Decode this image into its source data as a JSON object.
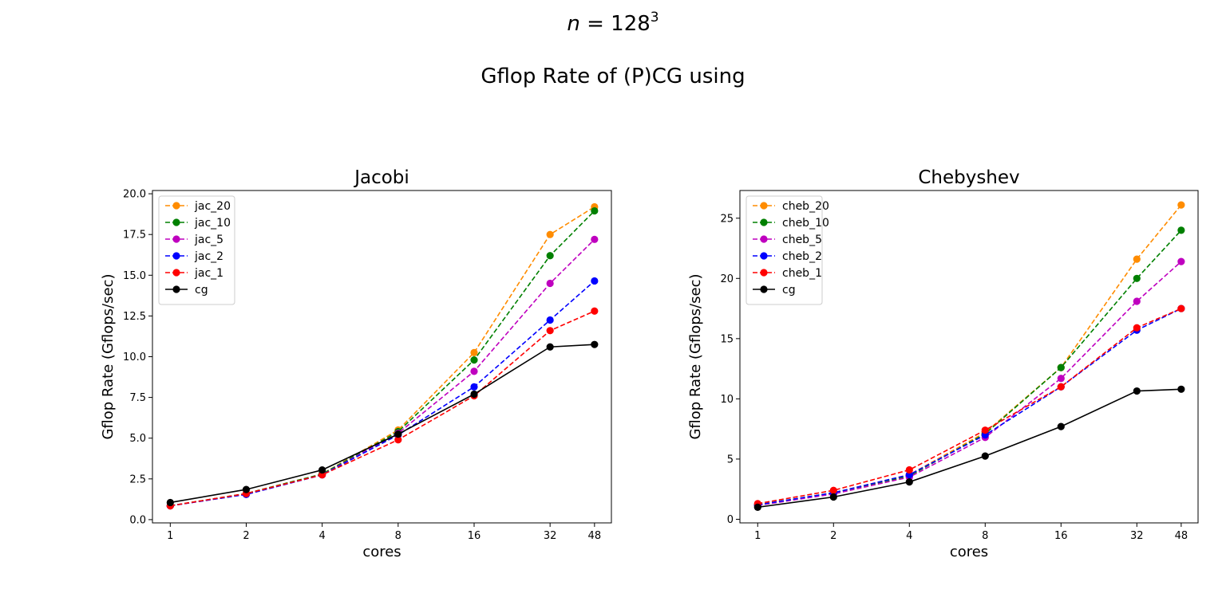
{
  "figure": {
    "title_prefix": "n = 128",
    "title_exponent": "3",
    "subtitle": "Gflop Rate of (P)CG using"
  },
  "colors": {
    "orange": "#ff8c00",
    "green": "#008000",
    "magenta": "#bf00bf",
    "blue": "#0000ff",
    "red": "#ff0000",
    "black": "#000000"
  },
  "chart_data": [
    {
      "type": "line",
      "title": "Jacobi",
      "xlabel": "cores",
      "ylabel": "Gflop Rate (Gflops/sec)",
      "x": [
        1,
        2,
        4,
        8,
        16,
        32,
        48
      ],
      "xscale": "log2",
      "xlim": [
        0.85,
        56
      ],
      "ylim": [
        -0.2,
        20.2
      ],
      "yticks": [
        0.0,
        2.5,
        5.0,
        7.5,
        10.0,
        12.5,
        15.0,
        17.5,
        20.0
      ],
      "ytick_labels": [
        "0.0",
        "2.5",
        "5.0",
        "7.5",
        "10.0",
        "12.5",
        "15.0",
        "17.5",
        "20.0"
      ],
      "xtick_labels": [
        "1",
        "2",
        "4",
        "8",
        "16",
        "32",
        "48"
      ],
      "legend_position": "upper-left",
      "grid": false,
      "series": [
        {
          "name": "jac_20",
          "color": "#ff8c00",
          "style": "dashed",
          "values": [
            0.85,
            1.6,
            2.8,
            5.5,
            10.25,
            17.5,
            19.2
          ]
        },
        {
          "name": "jac_10",
          "color": "#008000",
          "style": "dashed",
          "values": [
            0.85,
            1.6,
            2.8,
            5.4,
            9.8,
            16.2,
            18.95
          ]
        },
        {
          "name": "jac_5",
          "color": "#bf00bf",
          "style": "dashed",
          "values": [
            0.85,
            1.55,
            2.75,
            5.3,
            9.1,
            14.5,
            17.2
          ]
        },
        {
          "name": "jac_2",
          "color": "#0000ff",
          "style": "dashed",
          "values": [
            0.85,
            1.55,
            2.75,
            5.2,
            8.15,
            12.25,
            14.65
          ]
        },
        {
          "name": "jac_1",
          "color": "#ff0000",
          "style": "dashed",
          "values": [
            0.85,
            1.6,
            2.75,
            4.9,
            7.6,
            11.6,
            12.8
          ]
        },
        {
          "name": "cg",
          "color": "#000000",
          "style": "solid",
          "values": [
            1.05,
            1.85,
            3.05,
            5.25,
            7.7,
            10.6,
            10.75
          ]
        }
      ]
    },
    {
      "type": "line",
      "title": "Chebyshev",
      "xlabel": "cores",
      "ylabel": "Gflop Rate (Gflops/sec)",
      "x": [
        1,
        2,
        4,
        8,
        16,
        32,
        48
      ],
      "xscale": "log2",
      "xlim": [
        0.85,
        56
      ],
      "ylim": [
        -0.3,
        27.3
      ],
      "yticks": [
        0,
        5,
        10,
        15,
        20,
        25
      ],
      "ytick_labels": [
        "0",
        "5",
        "10",
        "15",
        "20",
        "25"
      ],
      "xtick_labels": [
        "1",
        "2",
        "4",
        "8",
        "16",
        "32",
        "48"
      ],
      "legend_position": "upper-left",
      "grid": false,
      "series": [
        {
          "name": "cheb_20",
          "color": "#ff8c00",
          "style": "dashed",
          "values": [
            1.2,
            2.2,
            3.7,
            7.2,
            12.6,
            21.6,
            26.1
          ]
        },
        {
          "name": "cheb_10",
          "color": "#008000",
          "style": "dashed",
          "values": [
            1.2,
            2.2,
            3.6,
            7.1,
            12.6,
            20.0,
            24.0
          ]
        },
        {
          "name": "cheb_5",
          "color": "#bf00bf",
          "style": "dashed",
          "values": [
            1.15,
            2.1,
            3.5,
            6.8,
            11.7,
            18.1,
            21.4
          ]
        },
        {
          "name": "cheb_2",
          "color": "#0000ff",
          "style": "dashed",
          "values": [
            1.2,
            2.2,
            3.7,
            7.0,
            11.0,
            15.7,
            17.5
          ]
        },
        {
          "name": "cheb_1",
          "color": "#ff0000",
          "style": "dashed",
          "values": [
            1.3,
            2.4,
            4.1,
            7.4,
            11.0,
            15.9,
            17.5
          ]
        },
        {
          "name": "cg",
          "color": "#000000",
          "style": "solid",
          "values": [
            1.0,
            1.85,
            3.1,
            5.25,
            7.7,
            10.65,
            10.8
          ]
        }
      ]
    }
  ]
}
